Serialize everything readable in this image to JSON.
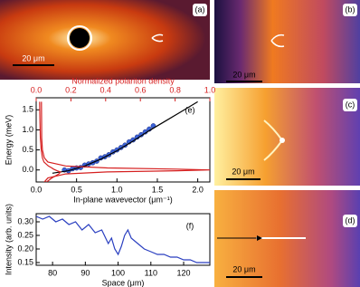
{
  "panels": [
    {
      "label": "(a)",
      "scale_bar": "20 μm"
    },
    {
      "label": "(b)",
      "scale_bar": "20 μm"
    },
    {
      "label": "(c)",
      "scale_bar": "20 μm"
    },
    {
      "label": "(d)",
      "scale_bar": "20 μm"
    }
  ],
  "chart_data": [
    {
      "type": "scatter",
      "label": "(e)",
      "xlabel": "In-plane wavevector (μm⁻¹)",
      "ylabel": "Energy (meV)",
      "x2label": "Normalized polariton density",
      "xlim": [
        0,
        2.15
      ],
      "x2lim": [
        0,
        1.0
      ],
      "ylim": [
        -0.3,
        1.8
      ],
      "xticks": [
        {
          "value": 0,
          "label": "0.0"
        },
        0.5,
        {
          "value": 1,
          "label": "1.0"
        },
        1.5,
        {
          "value": 2,
          "label": "2.0"
        }
      ],
      "x2ticks": [
        {
          "value": 0,
          "label": "0.0"
        },
        0.2,
        0.4,
        0.6,
        0.8,
        {
          "value": 1,
          "label": "1.0"
        }
      ],
      "yticks": [
        {
          "value": 0,
          "label": "0.0"
        },
        0.5,
        {
          "value": 1,
          "label": "1.0"
        },
        1.5
      ],
      "series": [
        {
          "style": "markers",
          "color": "#3a62d8",
          "x": [
            0.35,
            0.4,
            0.45,
            0.5,
            0.55,
            0.6,
            0.65,
            0.7,
            0.75,
            0.8,
            0.85,
            0.9,
            0.95,
            1.0,
            1.05,
            1.1,
            1.15,
            1.2,
            1.25,
            1.3,
            1.35,
            1.4,
            1.45
          ],
          "values": [
            0.0,
            -0.02,
            0.03,
            0.05,
            0.06,
            0.12,
            0.15,
            0.18,
            0.22,
            0.3,
            0.33,
            0.38,
            0.45,
            0.5,
            0.56,
            0.62,
            0.7,
            0.75,
            0.82,
            0.88,
            0.95,
            1.02,
            1.1
          ]
        },
        {
          "style": "line",
          "color": "#000000",
          "x": [
            0.2,
            0.4,
            0.6,
            0.8,
            1.0,
            1.2,
            1.4,
            1.6,
            1.8,
            2.0
          ],
          "values": [
            -0.08,
            -0.02,
            0.1,
            0.27,
            0.48,
            0.72,
            0.98,
            1.22,
            1.46,
            1.7
          ]
        },
        {
          "style": "line",
          "color": "#d62020",
          "axis": "x2",
          "x": [
            0.03,
            0.031,
            0.032,
            0.036,
            0.047,
            0.067,
            0.17,
            0.41,
            0.81,
            1.0,
            0.81,
            0.41,
            0.17,
            0.067,
            0.047
          ],
          "values": [
            1.7,
            1.2,
            0.8,
            0.5,
            0.3,
            0.2,
            0.1,
            0.05,
            0.02,
            0.0,
            -0.02,
            -0.05,
            -0.1,
            -0.2,
            -0.3
          ]
        },
        {
          "style": "line",
          "color": "#d62020",
          "axis": "x2",
          "x": [
            0.02,
            0.022,
            0.024,
            0.029,
            0.036,
            0.045,
            0.07,
            0.09,
            0.1,
            0.11,
            0.12,
            0.14,
            0.13,
            0.09,
            0.06
          ],
          "values": [
            1.7,
            1.2,
            0.8,
            0.5,
            0.3,
            0.2,
            0.1,
            0.05,
            0.02,
            0.0,
            -0.02,
            -0.05,
            -0.1,
            -0.2,
            -0.3
          ]
        }
      ]
    },
    {
      "type": "line",
      "label": "(f)",
      "xlabel": "Space (μm)",
      "ylabel": "Intensity (arb. units)",
      "xlim": [
        75,
        128
      ],
      "ylim": [
        0.14,
        0.33
      ],
      "xticks": [
        80,
        90,
        100,
        110,
        120
      ],
      "yticks": [
        0.15,
        {
          "value": 0.2,
          "label": "0.20"
        },
        0.25,
        {
          "value": 0.3,
          "label": "0.30"
        }
      ],
      "series": [
        {
          "style": "line",
          "color": "#2a3fc0",
          "x": [
            75,
            77,
            79,
            81,
            83,
            85,
            87,
            89,
            91,
            93,
            95,
            97,
            98,
            99,
            100,
            101,
            102,
            103,
            104,
            106,
            108,
            110,
            112,
            114,
            116,
            118,
            120,
            122,
            124,
            126,
            128
          ],
          "values": [
            0.32,
            0.31,
            0.32,
            0.3,
            0.31,
            0.29,
            0.3,
            0.27,
            0.29,
            0.26,
            0.27,
            0.22,
            0.24,
            0.2,
            0.18,
            0.21,
            0.25,
            0.27,
            0.24,
            0.22,
            0.2,
            0.19,
            0.18,
            0.18,
            0.17,
            0.17,
            0.16,
            0.16,
            0.15,
            0.15,
            0.15
          ]
        }
      ]
    }
  ]
}
